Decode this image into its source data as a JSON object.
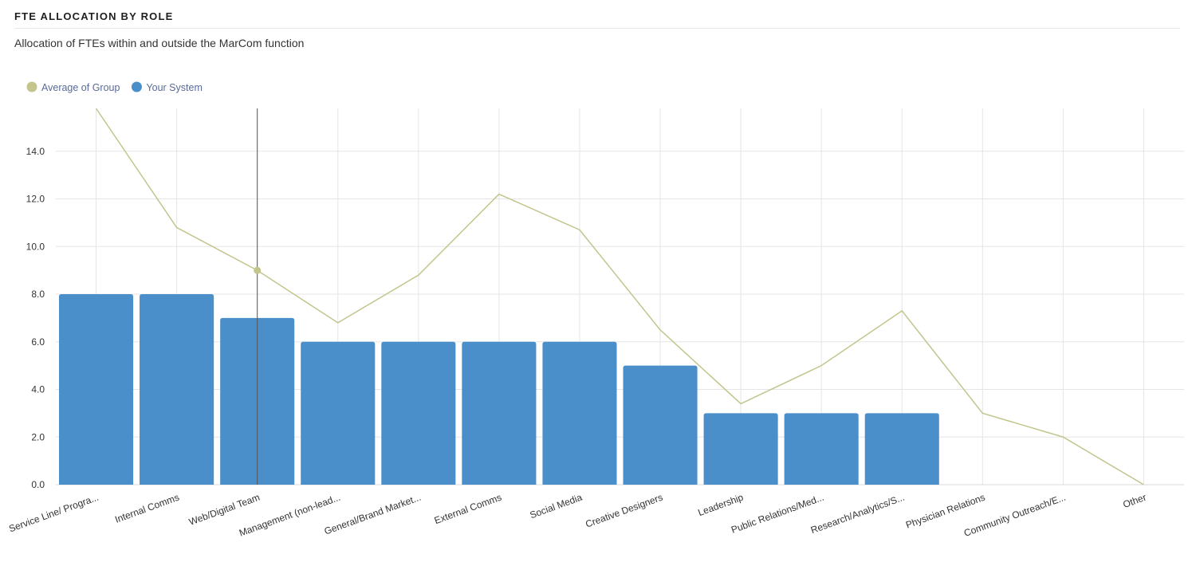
{
  "header": {
    "title": "FTE ALLOCATION BY ROLE",
    "subtitle": "Allocation of FTEs within and outside the MarCom function"
  },
  "colors": {
    "bar": "#4a8fc9",
    "line": "#c3c58d",
    "grid": "#e5e5e5",
    "crosshair": "#555555",
    "legend_text": "#5a6a9a"
  },
  "chart_data": {
    "type": "bar",
    "categories": [
      "Service Line/ Progra...",
      "Internal Comms",
      "Web/Digital Team",
      "Management (non-lead...",
      "General/Brand Market...",
      "External Comms",
      "Social Media",
      "Creative Designers",
      "Leadership",
      "Public Relations/Med...",
      "Research/Analytics/S...",
      "Physician Relations",
      "Community Outreach/E...",
      "Other"
    ],
    "series": [
      {
        "name": "Average of Group",
        "type": "line",
        "color": "#c3c58d",
        "values": [
          15.8,
          10.8,
          9.0,
          6.8,
          8.8,
          12.2,
          10.7,
          6.5,
          3.4,
          5.0,
          7.3,
          3.0,
          2.0,
          0.0
        ]
      },
      {
        "name": "Your System",
        "type": "bar",
        "color": "#4a8fc9",
        "values": [
          8,
          8,
          7,
          6,
          6,
          6,
          6,
          5,
          3,
          3,
          3,
          null,
          null,
          null
        ]
      }
    ],
    "yticks": [
      "0.0",
      "2.0",
      "4.0",
      "6.0",
      "8.0",
      "10.0",
      "12.0",
      "14.0"
    ],
    "ylim": [
      0,
      15.8
    ],
    "grid": true,
    "legend_position": "top-left",
    "highlighted_category": "Web/Digital Team"
  }
}
